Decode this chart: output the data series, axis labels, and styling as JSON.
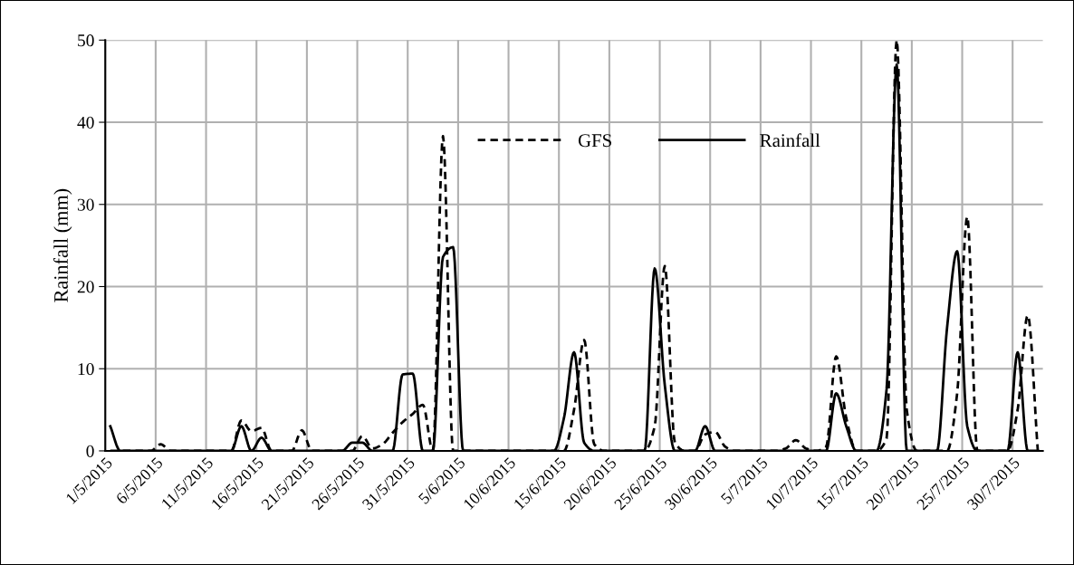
{
  "chart_data": {
    "type": "line",
    "ylabel": "Rainfall (mm)",
    "x": [
      "2015-05-01T12:00",
      "2015-05-02T12:00",
      "2015-05-03T12:00",
      "2015-05-04T12:00",
      "2015-05-05T12:00",
      "2015-05-06T12:00",
      "2015-05-07T12:00",
      "2015-05-08T12:00",
      "2015-05-09T12:00",
      "2015-05-10T12:00",
      "2015-05-11T12:00",
      "2015-05-12T12:00",
      "2015-05-13T12:00",
      "2015-05-14T12:00",
      "2015-05-15T12:00",
      "2015-05-16T12:00",
      "2015-05-17T12:00",
      "2015-05-18T12:00",
      "2015-05-19T12:00",
      "2015-05-20T12:00",
      "2015-05-21T12:00",
      "2015-05-22T12:00",
      "2015-05-23T12:00",
      "2015-05-24T12:00",
      "2015-05-25T12:00",
      "2015-05-26T12:00",
      "2015-05-27T12:00",
      "2015-05-28T12:00",
      "2015-05-29T12:00",
      "2015-05-30T12:00",
      "2015-05-31T12:00",
      "2015-06-01T12:00",
      "2015-06-02T12:00",
      "2015-06-03T12:00",
      "2015-06-04T12:00",
      "2015-06-05T12:00",
      "2015-06-06T12:00",
      "2015-06-07T12:00",
      "2015-06-08T12:00",
      "2015-06-09T12:00",
      "2015-06-10T12:00",
      "2015-06-11T12:00",
      "2015-06-12T12:00",
      "2015-06-13T12:00",
      "2015-06-14T12:00",
      "2015-06-15T12:00",
      "2015-06-16T12:00",
      "2015-06-17T12:00",
      "2015-06-18T12:00",
      "2015-06-19T12:00",
      "2015-06-20T12:00",
      "2015-06-21T12:00",
      "2015-06-22T12:00",
      "2015-06-23T12:00",
      "2015-06-24T12:00",
      "2015-06-25T12:00",
      "2015-06-26T12:00",
      "2015-06-27T12:00",
      "2015-06-28T12:00",
      "2015-06-29T12:00",
      "2015-06-30T12:00",
      "2015-07-01T12:00",
      "2015-07-02T12:00",
      "2015-07-03T12:00",
      "2015-07-04T12:00",
      "2015-07-05T12:00",
      "2015-07-06T12:00",
      "2015-07-07T12:00",
      "2015-07-08T12:00",
      "2015-07-09T12:00",
      "2015-07-10T12:00",
      "2015-07-11T12:00",
      "2015-07-12T12:00",
      "2015-07-13T12:00",
      "2015-07-14T12:00",
      "2015-07-15T12:00",
      "2015-07-16T12:00",
      "2015-07-17T12:00",
      "2015-07-18T12:00",
      "2015-07-19T12:00",
      "2015-07-20T12:00",
      "2015-07-21T12:00",
      "2015-07-22T12:00",
      "2015-07-23T12:00",
      "2015-07-24T12:00",
      "2015-07-25T12:00",
      "2015-07-26T12:00",
      "2015-07-27T12:00",
      "2015-07-28T12:00",
      "2015-07-29T12:00",
      "2015-07-30T12:00",
      "2015-07-31T12:00",
      "2015-08-01T12:00"
    ],
    "series": [
      {
        "name": "GFS",
        "color": "#000000",
        "line_style": "dashed",
        "values": [
          0,
          0,
          0,
          0,
          0,
          0.8,
          0,
          0,
          0,
          0,
          0,
          0,
          0,
          3.7,
          2.4,
          2.8,
          0,
          0,
          0,
          2.5,
          0,
          0,
          0,
          0,
          0,
          1.8,
          0.3,
          0.8,
          2.2,
          3.5,
          4.5,
          5.6,
          0,
          38.3,
          0,
          0,
          0,
          0,
          0,
          0,
          0,
          0,
          0,
          0,
          0,
          0,
          5,
          13.5,
          0.8,
          0,
          0,
          0,
          0,
          0,
          3,
          22.5,
          1,
          0,
          0,
          2,
          2.3,
          0.5,
          0,
          0,
          0,
          0,
          0,
          0.3,
          1.3,
          0.3,
          0,
          0.5,
          11.5,
          4,
          0,
          0,
          0,
          1.5,
          50,
          5,
          0,
          0,
          0,
          0,
          7,
          28.5,
          0,
          0,
          0,
          0,
          5,
          16.5,
          0
        ]
      },
      {
        "name": "Rainfall",
        "color": "#000000",
        "line_style": "solid",
        "values": [
          3,
          0,
          0,
          0,
          0,
          0,
          0,
          0,
          0,
          0,
          0,
          0,
          0,
          3,
          0,
          1.6,
          0,
          0,
          0,
          0,
          0,
          0,
          0,
          0,
          1.0,
          1.0,
          0,
          0,
          0,
          9.3,
          9.4,
          0,
          0,
          23.6,
          24.8,
          0,
          0,
          0,
          0,
          0,
          0,
          0,
          0,
          0,
          0,
          4,
          12,
          1,
          0,
          0,
          0,
          0,
          0,
          0,
          22.2,
          8,
          0,
          0,
          0,
          3,
          0,
          0,
          0,
          0,
          0,
          0,
          0,
          0,
          0,
          0,
          0,
          0,
          7,
          3,
          0,
          0,
          0,
          7.5,
          47,
          0,
          0,
          0,
          0,
          15,
          24.3,
          3,
          0,
          0,
          0,
          0,
          12,
          0,
          0
        ]
      }
    ],
    "xlim": [
      "2015-05-01",
      "2015-08-02"
    ],
    "xticks": [
      {
        "value": "2015-05-01",
        "label": "1/5/2015"
      },
      {
        "value": "2015-05-06",
        "label": "6/5/2015"
      },
      {
        "value": "2015-05-11",
        "label": "11/5/2015"
      },
      {
        "value": "2015-05-16",
        "label": "16/5/2015"
      },
      {
        "value": "2015-05-21",
        "label": "21/5/2015"
      },
      {
        "value": "2015-05-26",
        "label": "26/5/2015"
      },
      {
        "value": "2015-05-31",
        "label": "31/5/2015"
      },
      {
        "value": "2015-06-05",
        "label": "5/6/2015"
      },
      {
        "value": "2015-06-10",
        "label": "10/6/2015"
      },
      {
        "value": "2015-06-15",
        "label": "15/6/2015"
      },
      {
        "value": "2015-06-20",
        "label": "20/6/2015"
      },
      {
        "value": "2015-06-25",
        "label": "25/6/2015"
      },
      {
        "value": "2015-06-30",
        "label": "30/6/2015"
      },
      {
        "value": "2015-07-05",
        "label": "5/7/2015"
      },
      {
        "value": "2015-07-10",
        "label": "10/7/2015"
      },
      {
        "value": "2015-07-15",
        "label": "15/7/2015"
      },
      {
        "value": "2015-07-20",
        "label": "20/7/2015"
      },
      {
        "value": "2015-07-25",
        "label": "25/7/2015"
      },
      {
        "value": "2015-07-30",
        "label": "30/7/2015"
      }
    ],
    "ylim": [
      0,
      50
    ],
    "yticks": [
      0,
      10,
      20,
      30,
      40,
      50
    ],
    "grid": true,
    "legend": "top"
  }
}
